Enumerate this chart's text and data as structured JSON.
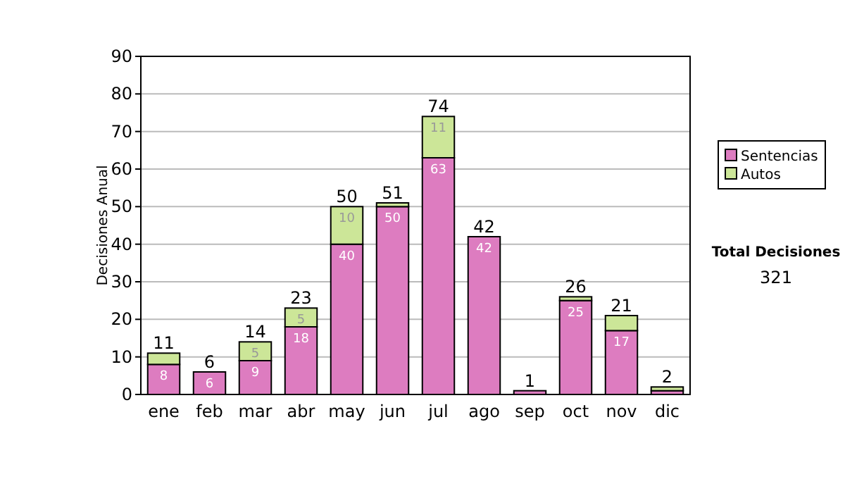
{
  "chart_data": {
    "type": "bar",
    "stacked": true,
    "ylabel": "Decisiones Anual",
    "categories": [
      "ene",
      "feb",
      "mar",
      "abr",
      "may",
      "jun",
      "jul",
      "ago",
      "sep",
      "oct",
      "nov",
      "dic"
    ],
    "series": [
      {
        "name": "Sentencias",
        "color": "#dd7cc0",
        "values": [
          8,
          6,
          9,
          18,
          40,
          50,
          63,
          42,
          1,
          25,
          17,
          1
        ],
        "value_labels": [
          "8",
          "6",
          "9",
          "18",
          "40",
          "50",
          "63",
          "42",
          null,
          "25",
          "17",
          null
        ]
      },
      {
        "name": "Autos",
        "color": "#cce698",
        "values": [
          3,
          0,
          5,
          5,
          10,
          1,
          11,
          0,
          0,
          1,
          4,
          1
        ],
        "value_labels": [
          null,
          null,
          "5",
          "5",
          "10",
          null,
          "11",
          null,
          null,
          null,
          null,
          null
        ]
      }
    ],
    "totals": [
      "11",
      "6",
      "14",
      "23",
      "50",
      "51",
      "74",
      "42",
      "1",
      "26",
      "21",
      "2"
    ],
    "ylim": [
      0,
      90
    ],
    "yticks": [
      0,
      10,
      20,
      30,
      40,
      50,
      60,
      70,
      80,
      90
    ],
    "grid": "y",
    "legend": "right",
    "annotations": [
      "Total Decisiones",
      "321"
    ]
  }
}
